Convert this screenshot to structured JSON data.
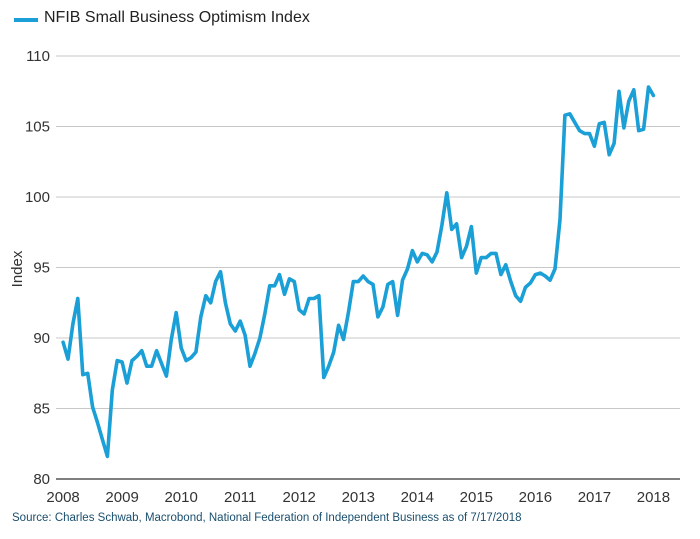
{
  "colors": {
    "series": "#1a9fd6",
    "grid": "#c8c8c8",
    "axis": "#333333"
  },
  "chart_data": {
    "type": "line",
    "ylabel": "Index",
    "ylim": [
      80,
      110
    ],
    "yticks": [
      80,
      85,
      90,
      95,
      100,
      105,
      110
    ],
    "xlim": [
      2007.88,
      2018.45
    ],
    "xtick_values": [
      2008,
      2009,
      2010,
      2011,
      2012,
      2013,
      2014,
      2015,
      2016,
      2017,
      2018
    ],
    "xtick_labels": [
      "2008",
      "2009",
      "2010",
      "2011",
      "2012",
      "2013",
      "2014",
      "2015",
      "2016",
      "2017",
      "2018"
    ],
    "grid": "horizontal",
    "legend": "top-left",
    "series": [
      {
        "name": "NFIB Small Business Optimism Index",
        "x_start": 2008.0,
        "x_step": 0.083333,
        "values": [
          89.7,
          88.5,
          91.0,
          92.8,
          87.4,
          87.5,
          85.1,
          84.0,
          82.8,
          81.6,
          86.3,
          88.4,
          88.3,
          86.8,
          88.4,
          88.7,
          89.1,
          88.0,
          88.0,
          89.1,
          88.2,
          87.3,
          89.9,
          91.8,
          89.3,
          88.4,
          88.6,
          89.0,
          91.5,
          93.0,
          92.5,
          94.0,
          94.7,
          92.5,
          91.0,
          90.5,
          91.2,
          90.2,
          88.0,
          88.9,
          90.0,
          91.7,
          93.7,
          93.7,
          94.5,
          93.1,
          94.2,
          94.0,
          92.0,
          91.7,
          92.8,
          92.8,
          93.0,
          87.2,
          88.0,
          89.0,
          90.9,
          89.9,
          91.8,
          94.0,
          94.0,
          94.4,
          94.0,
          93.8,
          91.5,
          92.2,
          93.8,
          94.0,
          91.6,
          94.1,
          94.9,
          96.2,
          95.4,
          96.0,
          95.9,
          95.4,
          96.1,
          98.0,
          100.3,
          97.7,
          98.1,
          95.7,
          96.5,
          97.9,
          94.6,
          95.7,
          95.7,
          96.0,
          96.0,
          94.5,
          95.2,
          94.0,
          93.0,
          92.6,
          93.6,
          93.9,
          94.5,
          94.6,
          94.4,
          94.1,
          94.9,
          98.4,
          105.8,
          105.9,
          105.3,
          104.7,
          104.5,
          104.5,
          103.6,
          105.2,
          105.3,
          103.0,
          103.8,
          107.5,
          104.9,
          106.8,
          107.6,
          104.7,
          104.8,
          107.8,
          107.2
        ]
      }
    ]
  },
  "source_text": "Source: Charles Schwab, Macrobond, National Federation of Independent Business as of 7/17/2018"
}
